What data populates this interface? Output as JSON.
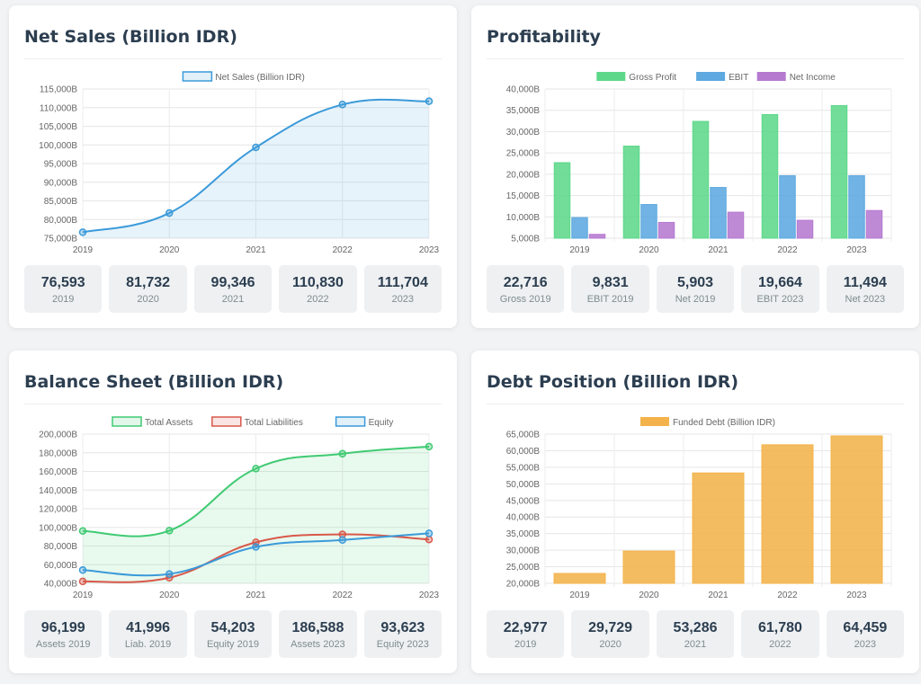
{
  "cards": {
    "sales": {
      "title": "Net Sales (Billion IDR)",
      "stats": [
        {
          "value": "76,593",
          "label": "2019"
        },
        {
          "value": "81,732",
          "label": "2020"
        },
        {
          "value": "99,346",
          "label": "2021"
        },
        {
          "value": "110,830",
          "label": "2022"
        },
        {
          "value": "111,704",
          "label": "2023"
        }
      ]
    },
    "profit": {
      "title": "Profitability",
      "stats": [
        {
          "value": "22,716",
          "label": "Gross 2019"
        },
        {
          "value": "9,831",
          "label": "EBIT 2019"
        },
        {
          "value": "5,903",
          "label": "Net 2019"
        },
        {
          "value": "19,664",
          "label": "EBIT 2023"
        },
        {
          "value": "11,494",
          "label": "Net 2023"
        }
      ]
    },
    "balance": {
      "title": "Balance Sheet (Billion IDR)",
      "stats": [
        {
          "value": "96,199",
          "label": "Assets 2019"
        },
        {
          "value": "41,996",
          "label": "Liab. 2019"
        },
        {
          "value": "54,203",
          "label": "Equity 2019"
        },
        {
          "value": "186,588",
          "label": "Assets 2023"
        },
        {
          "value": "93,623",
          "label": "Equity 2023"
        }
      ]
    },
    "debt": {
      "title": "Debt Position (Billion IDR)",
      "stats": [
        {
          "value": "22,977",
          "label": "2019"
        },
        {
          "value": "29,729",
          "label": "2020"
        },
        {
          "value": "53,286",
          "label": "2021"
        },
        {
          "value": "61,780",
          "label": "2022"
        },
        {
          "value": "64,459",
          "label": "2023"
        }
      ]
    }
  },
  "chart_data": [
    {
      "id": "sales",
      "type": "line",
      "categories": [
        "2019",
        "2020",
        "2021",
        "2022",
        "2023"
      ],
      "ylim": [
        75000,
        115000
      ],
      "ystep": 5000,
      "tick_suffix": "B",
      "filled": true,
      "series": [
        {
          "name": "Net Sales (Billion IDR)",
          "values": [
            76593,
            81732,
            99346,
            110830,
            111704
          ],
          "color": "#3b9ad9"
        }
      ]
    },
    {
      "id": "profit",
      "type": "bar",
      "categories": [
        "2019",
        "2020",
        "2021",
        "2022",
        "2023"
      ],
      "ylim": [
        5000,
        40000
      ],
      "ystep": 5000,
      "tick_suffix": "B",
      "series": [
        {
          "name": "Gross Profit",
          "values": [
            22716,
            26600,
            32400,
            34000,
            36100
          ],
          "color": "#5dd88a"
        },
        {
          "name": "EBIT",
          "values": [
            9831,
            12900,
            16900,
            19664,
            19664
          ],
          "color": "#5da9e0"
        },
        {
          "name": "Net Income",
          "values": [
            5903,
            8700,
            11100,
            9200,
            11494
          ],
          "color": "#b57ad0"
        }
      ]
    },
    {
      "id": "balance",
      "type": "line",
      "categories": [
        "2019",
        "2020",
        "2021",
        "2022",
        "2023"
      ],
      "ylim": [
        40000,
        200000
      ],
      "ystep": 20000,
      "tick_suffix": "B",
      "filled": false,
      "series": [
        {
          "name": "Total Assets",
          "values": [
            96199,
            96500,
            163000,
            179000,
            186588
          ],
          "color": "#3fca72",
          "fill": true
        },
        {
          "name": "Total Liabilities",
          "values": [
            41996,
            46000,
            84000,
            92500,
            87000
          ],
          "color": "#d9584a",
          "fill": false
        },
        {
          "name": "Equity",
          "values": [
            54203,
            50000,
            79000,
            86500,
            93623
          ],
          "color": "#3b9ad9",
          "fill": false
        }
      ]
    },
    {
      "id": "debt",
      "type": "bar",
      "categories": [
        "2019",
        "2020",
        "2021",
        "2022",
        "2023"
      ],
      "ylim": [
        20000,
        65000
      ],
      "ystep": 5000,
      "tick_suffix": "B",
      "series": [
        {
          "name": "Funded Debt (Billion IDR)",
          "values": [
            22977,
            29729,
            53286,
            61780,
            64459
          ],
          "color": "#f3b34a"
        }
      ]
    }
  ]
}
